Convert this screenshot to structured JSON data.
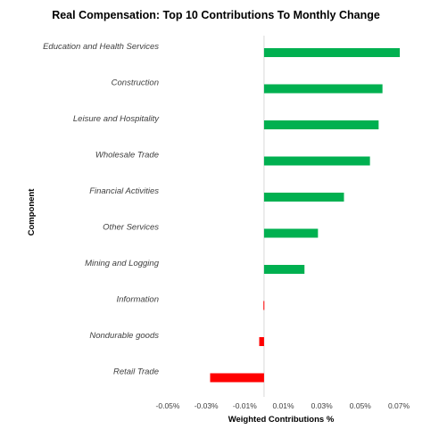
{
  "chart_data": {
    "type": "bar",
    "orientation": "horizontal",
    "title": "Real Compensation: Top 10 Contributions To Monthly Change",
    "xlabel": "Weighted Contributions %",
    "ylabel": "Component",
    "categories": [
      "Education and Health Services",
      "Construction",
      "Leisure and Hospitality",
      "Wholesale Trade",
      "Financial Activities",
      "Other Services",
      "Mining and Logging",
      "Information",
      "Nondurable goods",
      "Retail Trade"
    ],
    "values": [
      0.0705,
      0.0615,
      0.0595,
      0.055,
      0.0415,
      0.028,
      0.021,
      -0.0003,
      -0.0025,
      -0.028
    ],
    "xlim": [
      -0.05,
      0.07
    ],
    "xticks": [
      "-0.05%",
      "-0.03%",
      "-0.01%",
      "0.01%",
      "0.03%",
      "0.05%",
      "0.07%"
    ],
    "grid": false,
    "legend": "none",
    "colors": {
      "positive": "#00b050",
      "negative": "#ff0000",
      "zero_line": "#d9d9d9"
    }
  }
}
